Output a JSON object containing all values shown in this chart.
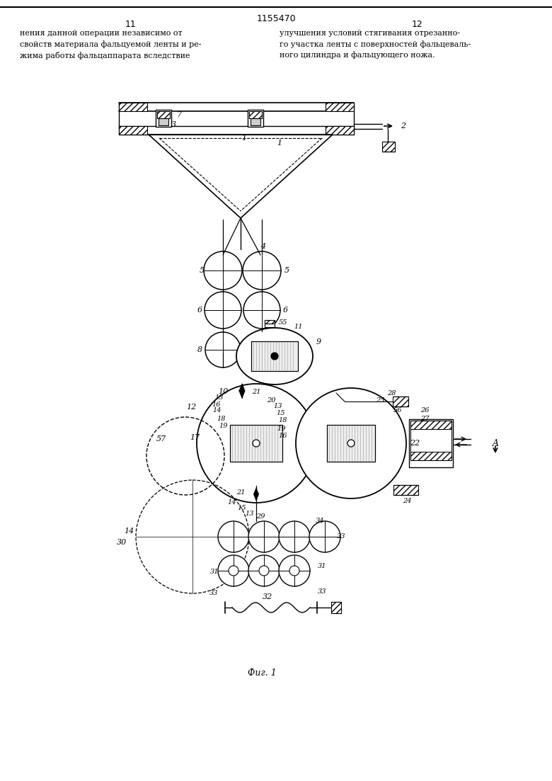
{
  "page_number_left": "11",
  "page_number_right": "12",
  "patent_number": "1155470",
  "text_left": "нения данной операции независимо от\nсвойств материала фальцуемой ленты и ре-\nжима работы фальцаппарата вследствие",
  "text_right": "улучшения условий стягивания отрезанно-\nго участка ленты с поверхностей фальцеваль-\nного цилиндра и фальцующего ножа.",
  "figure_label": "Фиг. 1",
  "bg_color": "#ffffff",
  "line_color": "#000000"
}
